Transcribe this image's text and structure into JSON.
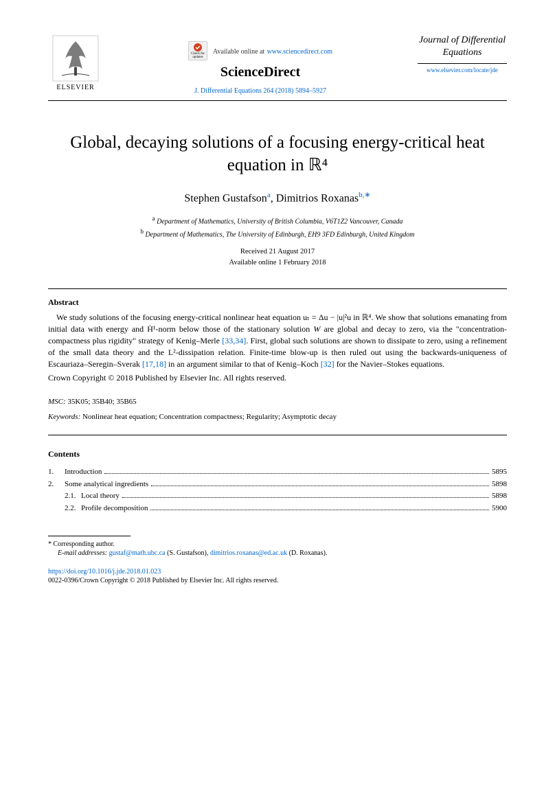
{
  "header": {
    "elsevier_label": "ELSEVIER",
    "available_text": "Available online at",
    "sciencedirect_url": "www.sciencedirect.com",
    "sciencedirect_logo": "ScienceDirect",
    "check_updates": "Check for updates",
    "citation": "J. Differential Equations 264 (2018) 5894–5927",
    "journal_title": "Journal of Differential Equations",
    "journal_url": "www.elsevier.com/locate/jde"
  },
  "title": "Global, decaying solutions of a focusing energy-critical heat equation in ℝ⁴",
  "authors": {
    "author1_name": "Stephen Gustafson",
    "author1_sup": "a",
    "author2_name": "Dimitrios Roxanas",
    "author2_sup": "b,∗"
  },
  "affiliations": {
    "a_sup": "a",
    "a_text": "Department of Mathematics, University of British Columbia, V6T1Z2 Vancouver, Canada",
    "b_sup": "b",
    "b_text": "Department of Mathematics, The University of Edinburgh, EH9 3FD Edinburgh, United Kingdom"
  },
  "dates": {
    "received": "Received 21 August 2017",
    "online": "Available online 1 February 2018"
  },
  "abstract": {
    "heading": "Abstract",
    "body_pre": "We study solutions of the focusing energy-critical nonlinear heat equation ",
    "eq1": "uₜ = Δu − |u|²u",
    "body_mid1": " in ℝ⁴. We show that solutions emanating from initial data with energy and ",
    "eq2": "Ḣ¹",
    "body_mid2": "-norm below those of the stationary solution ",
    "eq3": "W",
    "body_mid3": " are global and decay to zero, via the \"concentration-compactness plus rigidity\" strategy of Kenig–Merle ",
    "ref1": "[33,34]",
    "body_mid4": ". First, global such solutions are shown to dissipate to zero, using a refinement of the small data theory and the ",
    "eq4": "L²",
    "body_mid5": "-dissipation relation. Finite-time blow-up is then ruled out using the backwards-uniqueness of Escauriaza–Seregin–Sverak ",
    "ref2": "[17,18]",
    "body_mid6": " in an argument similar to that of Kenig–Koch ",
    "ref3": "[32]",
    "body_end": " for the Navier–Stokes equations.",
    "copyright": "Crown Copyright © 2018 Published by Elsevier Inc. All rights reserved."
  },
  "msc": {
    "label": "MSC:",
    "codes": " 35K05; 35B40; 35B65"
  },
  "keywords": {
    "label": "Keywords:",
    "text": " Nonlinear heat equation; Concentration compactness; Regularity; Asymptotic decay"
  },
  "contents": {
    "heading": "Contents",
    "items": [
      {
        "num": "1.",
        "label": "Introduction",
        "page": "5895",
        "indent": 0
      },
      {
        "num": "2.",
        "label": "Some analytical ingredients",
        "page": "5898",
        "indent": 0
      },
      {
        "num": "2.1.",
        "label": "Local theory",
        "page": "5898",
        "indent": 1
      },
      {
        "num": "2.2.",
        "label": "Profile decomposition",
        "page": "5900",
        "indent": 1
      }
    ]
  },
  "footer": {
    "corresponding_sup": "*",
    "corresponding_text": " Corresponding author.",
    "email_label": "E-mail addresses:",
    "email1": "gustaf@math.ubc.ca",
    "email1_name": " (S. Gustafson), ",
    "email2": "dimitrios.roxanas@ed.ac.uk",
    "email2_name": " (D. Roxanas).",
    "doi": "https://doi.org/10.1016/j.jde.2018.01.023",
    "bottom_copy": "0022-0396/Crown Copyright © 2018 Published by Elsevier Inc. All rights reserved."
  },
  "colors": {
    "link": "#0066cc",
    "text": "#000000",
    "background": "#ffffff"
  }
}
